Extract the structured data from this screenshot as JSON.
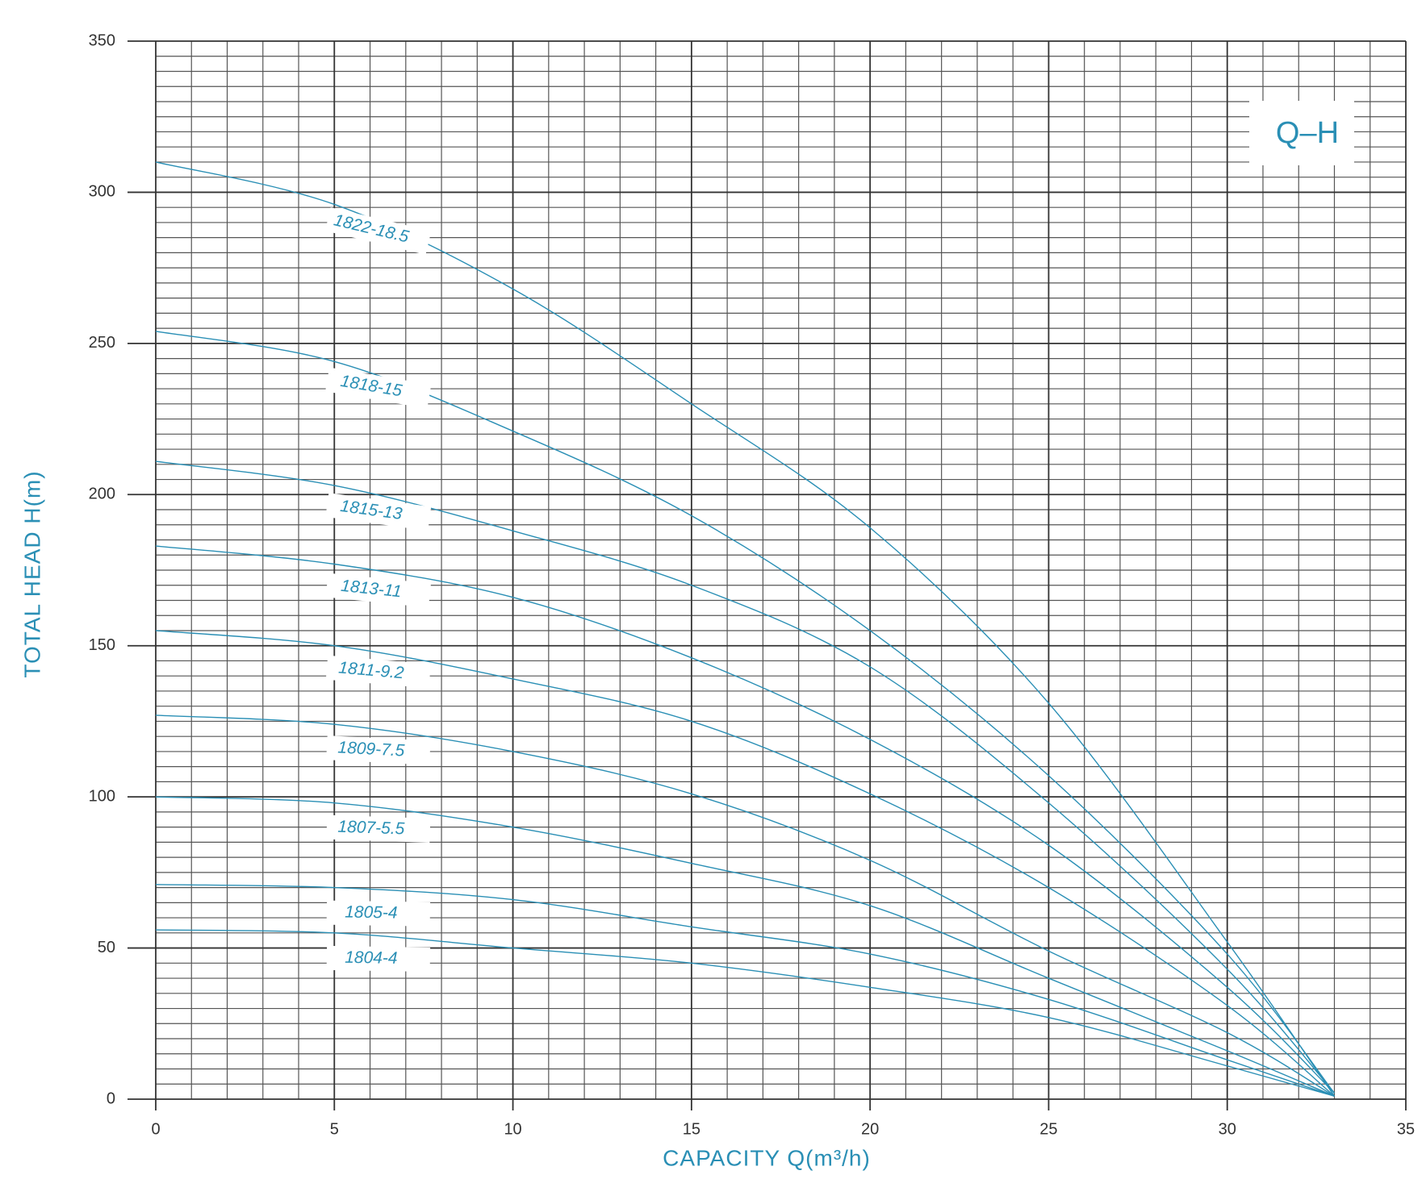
{
  "chart_data": {
    "type": "line",
    "xlabel": "CAPACITY Q(m³/h)",
    "ylabel": "TOTAL HEAD H(m)",
    "annotation": "Q–H",
    "x": [
      0,
      5,
      10,
      15,
      20,
      25,
      30,
      33
    ],
    "series": [
      {
        "name": "1822-18.5",
        "color": "#2a8fb5",
        "values": [
          310,
          296,
          268,
          230,
          189,
          131,
          52,
          1
        ]
      },
      {
        "name": "1818-15",
        "color": "#2a8fb5",
        "values": [
          254,
          244,
          221,
          193,
          155,
          107,
          48,
          2
        ]
      },
      {
        "name": "1815-13",
        "color": "#2a8fb5",
        "values": [
          211,
          203,
          188,
          170,
          143,
          98,
          43,
          2
        ]
      },
      {
        "name": "1813-11",
        "color": "#2a8fb5",
        "values": [
          183,
          177,
          166,
          146,
          119,
          84,
          37,
          2
        ]
      },
      {
        "name": "1811-9.2",
        "color": "#2a8fb5",
        "values": [
          155,
          150,
          139,
          125,
          101,
          70,
          31,
          1
        ]
      },
      {
        "name": "1809-7.5",
        "color": "#2a8fb5",
        "values": [
          127,
          124,
          115,
          101,
          79,
          49,
          22,
          1
        ]
      },
      {
        "name": "1807-5.5",
        "color": "#2a8fb5",
        "values": [
          100,
          98,
          90,
          78,
          64,
          40,
          16,
          1
        ]
      },
      {
        "name": "1805-4",
        "color": "#2a8fb5",
        "values": [
          71,
          70,
          66,
          57,
          48,
          33,
          13,
          1
        ]
      },
      {
        "name": "1804-4",
        "color": "#2a8fb5",
        "values": [
          56,
          55,
          50,
          45,
          37,
          27,
          11,
          1
        ]
      }
    ],
    "xlim": [
      0,
      35
    ],
    "xticks": [
      0,
      5,
      10,
      15,
      20,
      25,
      30,
      35
    ],
    "ylim": [
      0,
      350
    ],
    "yticks": [
      0,
      50,
      100,
      150,
      200,
      250,
      300,
      350
    ],
    "grid": true,
    "x_minor_step": 1,
    "y_minor_step": 5
  }
}
